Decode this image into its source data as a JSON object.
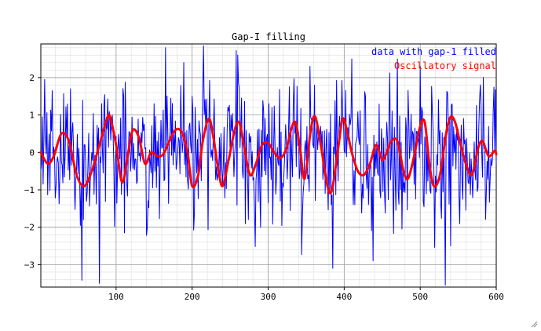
{
  "chart_data": {
    "type": "line",
    "title": "Gap-I filling",
    "xlabel": "",
    "ylabel": "",
    "xlim": [
      1,
      600
    ],
    "ylim": [
      -3.6,
      2.9
    ],
    "xticks": [
      100,
      200,
      300,
      400,
      500,
      600
    ],
    "xtick_labels": [
      "100",
      "200",
      "300",
      "400",
      "500",
      "600"
    ],
    "yticks": [
      -3,
      -2,
      -1,
      0,
      1,
      2
    ],
    "ytick_labels": [
      "−3",
      "−2",
      "−1",
      "0",
      "1",
      "2"
    ],
    "grid": true,
    "minor_grid": true,
    "legend_position": "top-right",
    "series": [
      {
        "name": "data with gap-1 filled",
        "color": "#0000ff",
        "line_width": 1,
        "style": "noisy",
        "n_points": 600,
        "noise_std": 0.9,
        "seed": 7,
        "x": [
          1,
          40,
          78,
          95,
          110,
          165,
          200,
          260,
          290,
          355,
          385,
          410,
          438,
          470,
          500,
          540,
          580,
          600
        ],
        "y": [
          -0.5,
          1.7,
          -3.5,
          1.0,
          1.5,
          2.8,
          1.5,
          2.6,
          -2.0,
          2.3,
          -3.1,
          2.5,
          -2.9,
          2.5,
          2.3,
          -2.5,
          1.3,
          -0.3
        ]
      },
      {
        "name": "Oscillatory signal",
        "color": "#ff0000",
        "line_width": 3,
        "style": "smooth",
        "x": [
          1,
          10,
          18,
          28,
          38,
          48,
          58,
          68,
          78,
          88,
          92,
          100,
          108,
          116,
          122,
          130,
          138,
          146,
          154,
          162,
          170,
          178,
          186,
          194,
          200,
          208,
          214,
          222,
          228,
          234,
          240,
          248,
          256,
          262,
          268,
          276,
          284,
          292,
          300,
          308,
          316,
          324,
          330,
          336,
          342,
          348,
          356,
          362,
          370,
          378,
          384,
          392,
          398,
          404,
          410,
          418,
          426,
          434,
          442,
          450,
          456,
          462,
          470,
          478,
          484,
          492,
          500,
          506,
          512,
          518,
          526,
          534,
          540,
          546,
          552,
          560,
          568,
          576,
          582,
          590,
          598,
          600
        ],
        "y": [
          0.0,
          -0.3,
          -0.1,
          0.5,
          0.3,
          -0.6,
          -0.9,
          -0.5,
          0.2,
          0.9,
          0.95,
          0.2,
          -0.8,
          0.0,
          0.6,
          0.4,
          -0.3,
          0.0,
          -0.1,
          -0.05,
          0.3,
          0.6,
          0.55,
          0.0,
          -0.9,
          -0.6,
          0.3,
          0.9,
          0.4,
          -0.4,
          -0.9,
          -0.2,
          0.6,
          0.8,
          0.2,
          -0.6,
          -0.3,
          0.2,
          0.25,
          0.0,
          -0.15,
          0.1,
          0.6,
          0.8,
          0.1,
          -0.7,
          0.6,
          0.95,
          0.1,
          -0.9,
          -1.0,
          0.1,
          0.9,
          0.55,
          0.0,
          -0.5,
          -0.6,
          -0.3,
          0.2,
          -0.2,
          0.0,
          0.3,
          0.3,
          -0.5,
          -0.7,
          -0.1,
          0.7,
          0.8,
          -0.3,
          -0.9,
          -0.6,
          0.5,
          0.95,
          0.8,
          0.3,
          -0.3,
          -0.6,
          0.1,
          0.3,
          -0.1,
          0.05,
          -0.05
        ]
      }
    ]
  },
  "ui": {
    "resize_grip_icon": "resize-grip-icon"
  }
}
